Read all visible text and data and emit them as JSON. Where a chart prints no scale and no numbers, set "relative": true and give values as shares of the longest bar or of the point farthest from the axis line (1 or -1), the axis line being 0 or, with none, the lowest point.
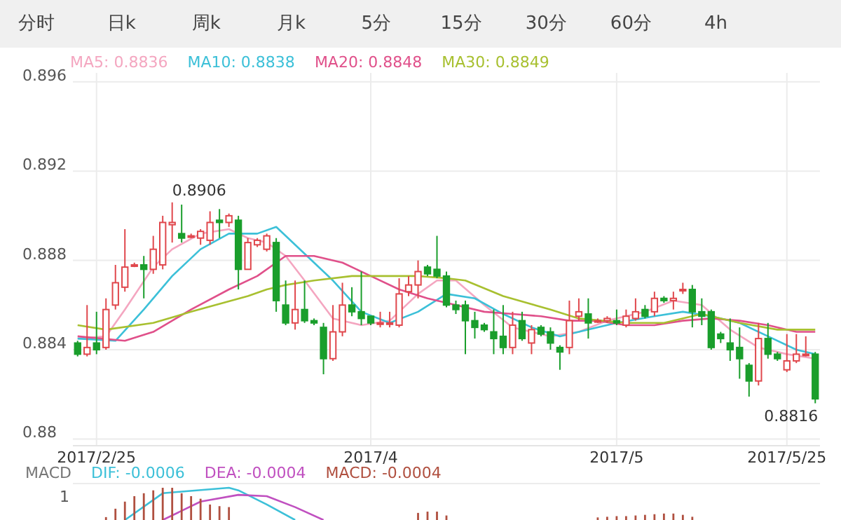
{
  "chart_data": [
    {
      "type": "candlestick",
      "annotations": [
        "分时",
        "日k",
        "周k",
        "月k",
        "5分",
        "15分",
        "30分",
        "60分",
        "4h",
        "0.8906",
        "0.8816"
      ],
      "categories": [
        null,
        null,
        "2017/2/25",
        null,
        null,
        null,
        null,
        null,
        null,
        null,
        null,
        null,
        null,
        null,
        null,
        null,
        null,
        null,
        null,
        null,
        null,
        null,
        null,
        null,
        null,
        null,
        null,
        null,
        null,
        null,
        null,
        "2017/4",
        null,
        null,
        null,
        null,
        null,
        null,
        null,
        null,
        null,
        null,
        null,
        null,
        null,
        null,
        null,
        null,
        null,
        null,
        null,
        null,
        null,
        null,
        null,
        null,
        null,
        "2017/5",
        null,
        null,
        null,
        null,
        null,
        null,
        null,
        null,
        null,
        null,
        null,
        null,
        null,
        null,
        null,
        null,
        null,
        "2017/5/25",
        null,
        null,
        null
      ],
      "ohlc": [
        [
          0.8843,
          0.8844,
          0.8837,
          0.8838
        ],
        [
          0.8838,
          0.886,
          0.8837,
          0.8841
        ],
        [
          0.8843,
          0.8857,
          0.8838,
          0.884
        ],
        [
          0.8841,
          0.8863,
          0.884,
          0.8858
        ],
        [
          0.886,
          0.8878,
          0.8858,
          0.887
        ],
        [
          0.8868,
          0.8894,
          0.8866,
          0.8877
        ],
        [
          0.8878,
          0.8879,
          0.8877,
          0.8878
        ],
        [
          0.8878,
          0.8882,
          0.8863,
          0.8876
        ],
        [
          0.8876,
          0.8891,
          0.8874,
          0.8885
        ],
        [
          0.8878,
          0.89,
          0.8876,
          0.8897
        ],
        [
          0.8896,
          0.8906,
          0.8888,
          0.8897
        ],
        [
          0.8892,
          0.8905,
          0.8888,
          0.889
        ],
        [
          0.8891,
          0.8892,
          0.889,
          0.8891
        ],
        [
          0.889,
          0.8894,
          0.8887,
          0.8893
        ],
        [
          0.8889,
          0.8902,
          0.8887,
          0.8897
        ],
        [
          0.8898,
          0.8903,
          0.889,
          0.8897
        ],
        [
          0.8897,
          0.8901,
          0.8895,
          0.89
        ],
        [
          0.8898,
          0.89,
          0.8867,
          0.8876
        ],
        [
          0.8876,
          0.889,
          0.8876,
          0.8888
        ],
        [
          0.8887,
          0.889,
          0.8886,
          0.8889
        ],
        [
          0.8885,
          0.8892,
          0.8884,
          0.8891
        ],
        [
          0.8888,
          0.889,
          0.8857,
          0.8862
        ],
        [
          0.886,
          0.8871,
          0.8851,
          0.8852
        ],
        [
          0.8852,
          0.8871,
          0.8849,
          0.8858
        ],
        [
          0.8858,
          0.8871,
          0.8852,
          0.8853
        ],
        [
          0.8853,
          0.8854,
          0.8851,
          0.8852
        ],
        [
          0.885,
          0.8852,
          0.8829,
          0.8836
        ],
        [
          0.8836,
          0.886,
          0.8835,
          0.8848
        ],
        [
          0.8848,
          0.887,
          0.8846,
          0.886
        ],
        [
          0.886,
          0.8868,
          0.8855,
          0.8857
        ],
        [
          0.8857,
          0.8875,
          0.8851,
          0.8854
        ],
        [
          0.8855,
          0.8855,
          0.8851,
          0.8852
        ],
        [
          0.8852,
          0.8857,
          0.885,
          0.8852
        ],
        [
          0.8852,
          0.8857,
          0.885,
          0.8852
        ],
        [
          0.8851,
          0.8872,
          0.885,
          0.8865
        ],
        [
          0.8866,
          0.8873,
          0.8864,
          0.8869
        ],
        [
          0.8869,
          0.888,
          0.8863,
          0.8875
        ],
        [
          0.8877,
          0.8878,
          0.8873,
          0.8874
        ],
        [
          0.8876,
          0.8891,
          0.8872,
          0.8873
        ],
        [
          0.8873,
          0.8875,
          0.8859,
          0.886
        ],
        [
          0.886,
          0.8862,
          0.8856,
          0.8858
        ],
        [
          0.886,
          0.8862,
          0.8838,
          0.8853
        ],
        [
          0.8853,
          0.8857,
          0.8845,
          0.885
        ],
        [
          0.8851,
          0.8852,
          0.8848,
          0.8849
        ],
        [
          0.8848,
          0.8858,
          0.8838,
          0.8845
        ],
        [
          0.8846,
          0.886,
          0.8838,
          0.8841
        ],
        [
          0.8841,
          0.8857,
          0.8838,
          0.8851
        ],
        [
          0.8853,
          0.8857,
          0.8844,
          0.8845
        ],
        [
          0.8843,
          0.8851,
          0.8838,
          0.8849
        ],
        [
          0.885,
          0.8851,
          0.8846,
          0.8847
        ],
        [
          0.8848,
          0.885,
          0.884,
          0.8843
        ],
        [
          0.8841,
          0.8842,
          0.8831,
          0.8839
        ],
        [
          0.8841,
          0.8862,
          0.8838,
          0.8853
        ],
        [
          0.8855,
          0.8863,
          0.8853,
          0.8857
        ],
        [
          0.8856,
          0.8863,
          0.8845,
          0.8852
        ],
        [
          0.8853,
          0.8854,
          0.8852,
          0.8853
        ],
        [
          0.8853,
          0.8855,
          0.8852,
          0.8854
        ],
        [
          0.8853,
          0.8858,
          0.8851,
          0.8852
        ],
        [
          0.8851,
          0.8858,
          0.885,
          0.8855
        ],
        [
          0.8854,
          0.8863,
          0.8853,
          0.8857
        ],
        [
          0.8858,
          0.886,
          0.8854,
          0.8855
        ],
        [
          0.8857,
          0.8866,
          0.8855,
          0.8863
        ],
        [
          0.8863,
          0.8864,
          0.8861,
          0.8862
        ],
        [
          0.8862,
          0.8866,
          0.8858,
          0.8863
        ],
        [
          0.8867,
          0.887,
          0.8865,
          0.8867
        ],
        [
          0.8867,
          0.8869,
          0.885,
          0.8857
        ],
        [
          0.8857,
          0.8863,
          0.8851,
          0.8855
        ],
        [
          0.8857,
          0.8858,
          0.884,
          0.8841
        ],
        [
          0.8847,
          0.8848,
          0.8843,
          0.8845
        ],
        [
          0.8843,
          0.8854,
          0.8835,
          0.884
        ],
        [
          0.8841,
          0.885,
          0.8827,
          0.8836
        ],
        [
          0.8833,
          0.8834,
          0.8819,
          0.8826
        ],
        [
          0.8826,
          0.8852,
          0.8824,
          0.8845
        ],
        [
          0.8845,
          0.8852,
          0.8836,
          0.8838
        ],
        [
          0.8838,
          0.8839,
          0.8835,
          0.8836
        ],
        [
          0.8831,
          0.8847,
          0.883,
          0.8835
        ],
        [
          0.8835,
          0.8847,
          0.8834,
          0.8838
        ],
        [
          0.8838,
          0.8846,
          0.8837,
          0.8838
        ],
        [
          0.8838,
          0.8839,
          0.8816,
          0.8818
        ]
      ],
      "series": [
        {
          "name": "MA5: 0.8836",
          "color": "#f4a6c0",
          "type": "line",
          "values": [
            0.8845,
            null,
            null,
            0.8846,
            null,
            0.8858,
            null,
            null,
            0.8877,
            null,
            0.8885,
            null,
            null,
            0.8892,
            null,
            null,
            0.8894,
            null,
            0.889,
            null,
            0.8888,
            null,
            0.8882,
            null,
            0.8871,
            null,
            null,
            0.8854,
            null,
            null,
            0.8851,
            null,
            null,
            0.8853,
            null,
            null,
            0.8865,
            null,
            0.8871,
            null,
            0.8871,
            null,
            null,
            0.886,
            null,
            null,
            0.885,
            null,
            null,
            null,
            0.8846,
            null,
            null,
            0.8848,
            null,
            null,
            0.8853,
            null,
            null,
            null,
            0.8857,
            null,
            null,
            0.8862,
            null,
            null,
            0.886,
            null,
            null,
            0.8849,
            null,
            null,
            0.8841,
            null,
            null,
            0.8838,
            null,
            null,
            0.8836
          ]
        },
        {
          "name": "MA10: 0.8838",
          "color": "#3cc0d8",
          "type": "line",
          "values": [
            0.8845,
            null,
            null,
            null,
            0.8844,
            null,
            null,
            0.8858,
            null,
            null,
            0.8873,
            null,
            null,
            0.8885,
            null,
            null,
            0.8892,
            null,
            null,
            0.8892,
            null,
            0.8895,
            null,
            null,
            0.8883,
            null,
            null,
            0.8871,
            null,
            null,
            0.8857,
            null,
            null,
            0.8852,
            null,
            null,
            0.8857,
            null,
            null,
            0.8865,
            null,
            null,
            0.8863,
            null,
            null,
            0.8856,
            null,
            null,
            0.885,
            null,
            null,
            0.8846,
            null,
            null,
            0.8849,
            null,
            null,
            0.8852,
            null,
            null,
            null,
            0.8855,
            null,
            null,
            0.8857,
            null,
            null,
            0.8855,
            null,
            null,
            0.8852,
            null,
            null,
            0.8846,
            null,
            null,
            0.884,
            null,
            0.8838
          ]
        },
        {
          "name": "MA20: 0.8848",
          "color": "#e0508a",
          "type": "line",
          "values": [
            0.8846,
            null,
            null,
            null,
            null,
            0.8844,
            null,
            null,
            0.8848,
            null,
            null,
            null,
            0.8858,
            null,
            null,
            null,
            0.8867,
            null,
            null,
            0.8873,
            null,
            null,
            0.8882,
            null,
            null,
            0.8882,
            null,
            null,
            0.8879,
            null,
            null,
            0.8873,
            null,
            null,
            0.8867,
            null,
            null,
            0.8863,
            null,
            null,
            0.886,
            null,
            null,
            0.8857,
            null,
            null,
            0.8856,
            null,
            null,
            0.8855,
            null,
            null,
            0.8853,
            null,
            null,
            0.8853,
            null,
            null,
            0.8851,
            null,
            null,
            0.8851,
            null,
            null,
            0.8853,
            null,
            null,
            0.8854,
            null,
            null,
            0.8853,
            null,
            null,
            0.8851,
            null,
            null,
            0.8848,
            null,
            0.8848
          ]
        },
        {
          "name": "MA30: 0.8849",
          "color": "#a8c030",
          "type": "line",
          "values": [
            0.8851,
            null,
            null,
            0.8849,
            null,
            null,
            null,
            null,
            0.8852,
            null,
            null,
            null,
            0.8857,
            null,
            null,
            null,
            null,
            null,
            0.8864,
            null,
            0.8867,
            null,
            0.8869,
            null,
            null,
            0.8871,
            null,
            null,
            null,
            0.8873,
            null,
            null,
            0.8873,
            null,
            null,
            null,
            0.8873,
            null,
            null,
            0.8872,
            null,
            0.8871,
            null,
            null,
            null,
            0.8864,
            null,
            null,
            null,
            null,
            0.8858,
            null,
            null,
            0.8854,
            null,
            null,
            null,
            null,
            0.8852,
            null,
            null,
            null,
            0.8852,
            null,
            null,
            null,
            0.8856,
            null,
            null,
            null,
            0.8852,
            null,
            null,
            null,
            0.8849,
            null,
            null,
            null,
            0.8849
          ]
        }
      ],
      "ylim": [
        0.8797,
        0.8964
      ],
      "yticks": [
        0.88,
        0.884,
        0.888,
        0.892,
        0.896
      ],
      "grid": true,
      "legend": "top left"
    },
    {
      "type": "line",
      "relative": true,
      "grid": true,
      "title": "MACD",
      "annotations": [
        "1"
      ],
      "categories": [
        null,
        null,
        null,
        null,
        null,
        null,
        null,
        null,
        null,
        null,
        null,
        null,
        null,
        null,
        null,
        null,
        null,
        null,
        null,
        null,
        null,
        null,
        null,
        null,
        null,
        null,
        null,
        null,
        null,
        null,
        null,
        null,
        null,
        null,
        null,
        null,
        null,
        null,
        null,
        null,
        null,
        null,
        null,
        null,
        null,
        null,
        null,
        null,
        null,
        null,
        null,
        null,
        null,
        null,
        null,
        null,
        null,
        null,
        null,
        null,
        null,
        null,
        null,
        null,
        null,
        null,
        null,
        null,
        null,
        null,
        null,
        null,
        null,
        null,
        null,
        null,
        null,
        null,
        null
      ],
      "series": [
        {
          "name": "DIF: -0.0006",
          "color": "#3cc0d8",
          "type": "line",
          "values": [
            null,
            null,
            null,
            null,
            null,
            0,
            null,
            null,
            null,
            0.83,
            null,
            0.88,
            null,
            null,
            null,
            null,
            1,
            0.92,
            null,
            null,
            0.48,
            null,
            null,
            0,
            null,
            null,
            null,
            null,
            null,
            null,
            null,
            null,
            null,
            null,
            null,
            null,
            null,
            null,
            null,
            null,
            null,
            null,
            null,
            null,
            null,
            null,
            null,
            null,
            null,
            null,
            null,
            null,
            null,
            null,
            null,
            null,
            null,
            null,
            null,
            null,
            null,
            null,
            null,
            null,
            null,
            null,
            null,
            null,
            null,
            null,
            null,
            null,
            null,
            null,
            null,
            null,
            null,
            null,
            null
          ]
        },
        {
          "name": "DEA: -0.0004",
          "color": "#c050c0",
          "type": "line",
          "values": [
            null,
            null,
            null,
            null,
            null,
            null,
            null,
            null,
            null,
            0,
            null,
            null,
            null,
            0.57,
            null,
            null,
            null,
            0.78,
            null,
            null,
            0.74,
            null,
            null,
            0.4,
            null,
            null,
            0,
            null,
            null,
            null,
            null,
            null,
            null,
            null,
            null,
            null,
            null,
            null,
            null,
            null,
            null,
            null,
            null,
            null,
            null,
            null,
            null,
            null,
            null,
            null,
            null,
            null,
            null,
            null,
            null,
            null,
            null,
            null,
            null,
            null,
            null,
            null,
            null,
            null,
            null,
            null,
            null,
            null,
            null,
            null,
            null,
            null,
            null,
            null,
            null,
            null,
            null,
            null,
            null
          ]
        },
        {
          "name": "MACD: -0.0004",
          "color": "#b05040",
          "type": "bar",
          "values": [
            null,
            null,
            null,
            0.09,
            0.35,
            0.57,
            0.74,
            0.83,
            0.92,
            1,
            1,
            0.83,
            0.74,
            0.66,
            0.48,
            0.43,
            0.4,
            null,
            null,
            null,
            null,
            null,
            null,
            null,
            null,
            null,
            null,
            null,
            null,
            null,
            null,
            null,
            null,
            null,
            null,
            null,
            0.22,
            0.26,
            0.26,
            0.14,
            null,
            null,
            null,
            null,
            null,
            null,
            null,
            null,
            null,
            null,
            null,
            null,
            null,
            null,
            null,
            0.08,
            0.1,
            0.12,
            0.12,
            0.14,
            0.16,
            0.18,
            0.2,
            0.2,
            0.16,
            0.1,
            null,
            null,
            null,
            null,
            null,
            null,
            null,
            null,
            null,
            null,
            null,
            null,
            null
          ]
        }
      ]
    }
  ]
}
